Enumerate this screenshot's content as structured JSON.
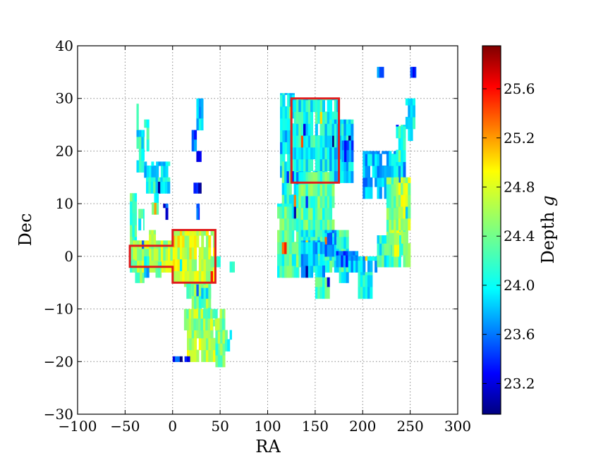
{
  "chart_data": {
    "type": "heatmap",
    "xlabel": "RA",
    "ylabel": "Dec",
    "xlim": [
      -100,
      300
    ],
    "ylim": [
      -30,
      40
    ],
    "x_ticks": [
      "−100",
      "−50",
      "0",
      "50",
      "100",
      "150",
      "200",
      "250",
      "300"
    ],
    "y_ticks": [
      "−30",
      "−20",
      "−10",
      "0",
      "10",
      "20",
      "30",
      "40"
    ],
    "x_tick_values": [
      -100,
      -50,
      0,
      50,
      100,
      150,
      200,
      250,
      300
    ],
    "y_tick_values": [
      -30,
      -20,
      -10,
      0,
      10,
      20,
      30,
      40
    ],
    "grid": true,
    "colorbar": {
      "label_main": "Depth",
      "label_italic": "g",
      "range": [
        22.95,
        25.95
      ],
      "ticks": [
        "23.2",
        "23.6",
        "24.0",
        "24.4",
        "24.8",
        "25.2",
        "25.6"
      ],
      "tick_values": [
        23.2,
        23.6,
        24.0,
        24.4,
        24.8,
        25.2,
        25.6
      ],
      "colormap": "jet"
    },
    "highlight_regions": [
      {
        "name": "region-1",
        "color": "#e01b1b",
        "polygon": [
          [
            -45,
            2
          ],
          [
            0,
            2
          ],
          [
            0,
            5
          ],
          [
            45,
            5
          ],
          [
            45,
            -5
          ],
          [
            0,
            -5
          ],
          [
            0,
            -2
          ],
          [
            -45,
            -2
          ]
        ]
      },
      {
        "name": "region-2",
        "color": "#e01b1b",
        "polygon": [
          [
            125,
            14
          ],
          [
            175,
            14
          ],
          [
            175,
            30
          ],
          [
            125,
            30
          ]
        ]
      }
    ],
    "coverage_patches": [
      {
        "ra": [
          -45,
          -38
        ],
        "dec": [
          -3,
          12
        ],
        "depth": 24.3
      },
      {
        "ra": [
          -42,
          -30
        ],
        "dec": [
          -5,
          3
        ],
        "depth": 24.5
      },
      {
        "ra": [
          -40,
          0
        ],
        "dec": [
          -3,
          3
        ],
        "depth": 24.6
      },
      {
        "ra": [
          -36,
          -30
        ],
        "dec": [
          5,
          9
        ],
        "depth": 24.2
      },
      {
        "ra": [
          -30,
          -25
        ],
        "dec": [
          -4,
          0
        ],
        "depth": 24.0
      },
      {
        "ra": [
          -38,
          -36
        ],
        "dec": [
          22,
          29
        ],
        "depth": 24.3
      },
      {
        "ra": [
          -38,
          -30
        ],
        "dec": [
          16,
          24
        ],
        "depth": 24.1
      },
      {
        "ra": [
          -30,
          -25
        ],
        "dec": [
          20,
          26
        ],
        "depth": 24.3
      },
      {
        "ra": [
          -30,
          -3
        ],
        "dec": [
          15,
          18
        ],
        "depth": 24.0
      },
      {
        "ra": [
          -28,
          -3
        ],
        "dec": [
          12,
          15
        ],
        "depth": 24.1
      },
      {
        "ra": [
          -22,
          -15
        ],
        "dec": [
          8,
          12
        ],
        "depth": 24.3
      },
      {
        "ra": [
          -10,
          -5
        ],
        "dec": [
          7,
          10
        ],
        "depth": 23.4
      },
      {
        "ra": [
          -18,
          -12
        ],
        "dec": [
          -4,
          -1
        ],
        "depth": 24.4
      },
      {
        "ra": [
          -25,
          -18
        ],
        "dec": [
          2,
          5
        ],
        "depth": 24.5
      },
      {
        "ra": [
          0,
          45
        ],
        "dec": [
          -5,
          5
        ],
        "depth": 24.7
      },
      {
        "ra": [
          12,
          22
        ],
        "dec": [
          -8,
          -5
        ],
        "depth": 24.3
      },
      {
        "ra": [
          20,
          40
        ],
        "dec": [
          -12,
          -5
        ],
        "depth": 24.4
      },
      {
        "ra": [
          15,
          50
        ],
        "dec": [
          -20,
          -12
        ],
        "depth": 24.6
      },
      {
        "ra": [
          12,
          55
        ],
        "dec": [
          -14,
          -10
        ],
        "depth": 24.5
      },
      {
        "ra": [
          45,
          55
        ],
        "dec": [
          -21,
          -14
        ],
        "depth": 24.4
      },
      {
        "ra": [
          55,
          62
        ],
        "dec": [
          -18,
          -14
        ],
        "depth": 24.2
      },
      {
        "ra": [
          0,
          18
        ],
        "dec": [
          -20,
          -19
        ],
        "depth": 23.5
      },
      {
        "ra": [
          25,
          28
        ],
        "dec": [
          7,
          10
        ],
        "depth": 23.6
      },
      {
        "ra": [
          25,
          30
        ],
        "dec": [
          18,
          20
        ],
        "depth": 23.3
      },
      {
        "ra": [
          22,
          30
        ],
        "dec": [
          12,
          14
        ],
        "depth": 23.2
      },
      {
        "ra": [
          20,
          25
        ],
        "dec": [
          20,
          24
        ],
        "depth": 23.6
      },
      {
        "ra": [
          25,
          32
        ],
        "dec": [
          24,
          30
        ],
        "depth": 23.9
      },
      {
        "ra": [
          30,
          40
        ],
        "dec": [
          -8,
          -6
        ],
        "depth": 24.1
      },
      {
        "ra": [
          60,
          65
        ],
        "dec": [
          -3,
          -1
        ],
        "depth": 24.0
      },
      {
        "ra": [
          40,
          50
        ],
        "dec": [
          -2,
          0
        ],
        "depth": 24.2
      },
      {
        "ra": [
          113,
          128
        ],
        "dec": [
          15,
          31
        ],
        "depth": 24.0
      },
      {
        "ra": [
          115,
          133
        ],
        "dec": [
          -4,
          18
        ],
        "depth": 24.2
      },
      {
        "ra": [
          110,
          125
        ],
        "dec": [
          -4,
          10
        ],
        "depth": 24.3
      },
      {
        "ra": [
          125,
          175
        ],
        "dec": [
          14,
          30
        ],
        "depth": 24.1
      },
      {
        "ra": [
          130,
          170
        ],
        "dec": [
          -2,
          16
        ],
        "depth": 24.3
      },
      {
        "ra": [
          135,
          185
        ],
        "dec": [
          -3,
          5
        ],
        "depth": 24.2
      },
      {
        "ra": [
          135,
          160
        ],
        "dec": [
          -4,
          3
        ],
        "depth": 23.9
      },
      {
        "ra": [
          160,
          172
        ],
        "dec": [
          0,
          5
        ],
        "depth": 23.8
      },
      {
        "ra": [
          172,
          195
        ],
        "dec": [
          -2,
          1
        ],
        "depth": 23.6
      },
      {
        "ra": [
          185,
          215
        ],
        "dec": [
          -3,
          0
        ],
        "depth": 23.9
      },
      {
        "ra": [
          195,
          210
        ],
        "dec": [
          -8,
          -3
        ],
        "depth": 24.1
      },
      {
        "ra": [
          150,
          165
        ],
        "dec": [
          -8,
          -4
        ],
        "depth": 24.2
      },
      {
        "ra": [
          175,
          185
        ],
        "dec": [
          -5,
          -3
        ],
        "depth": 24.0
      },
      {
        "ra": [
          165,
          190
        ],
        "dec": [
          14,
          26
        ],
        "depth": 24.0
      },
      {
        "ra": [
          178,
          190
        ],
        "dec": [
          18,
          22
        ],
        "depth": 23.6
      },
      {
        "ra": [
          200,
          245
        ],
        "dec": [
          11,
          15
        ],
        "depth": 23.8
      },
      {
        "ra": [
          200,
          245
        ],
        "dec": [
          15,
          20
        ],
        "depth": 23.9
      },
      {
        "ra": [
          225,
          250
        ],
        "dec": [
          -2,
          15
        ],
        "depth": 24.4
      },
      {
        "ra": [
          215,
          240
        ],
        "dec": [
          -2,
          4
        ],
        "depth": 24.2
      },
      {
        "ra": [
          228,
          238
        ],
        "dec": [
          0,
          5
        ],
        "depth": 24.7
      },
      {
        "ra": [
          235,
          250
        ],
        "dec": [
          5,
          15
        ],
        "depth": 24.6
      },
      {
        "ra": [
          245,
          255
        ],
        "dec": [
          22,
          30
        ],
        "depth": 24.0
      },
      {
        "ra": [
          235,
          245
        ],
        "dec": [
          18,
          25
        ],
        "depth": 24.2
      },
      {
        "ra": [
          215,
          222
        ],
        "dec": [
          34,
          36
        ],
        "depth": 23.8
      },
      {
        "ra": [
          250,
          256
        ],
        "dec": [
          34,
          36
        ],
        "depth": 23.4
      }
    ]
  }
}
